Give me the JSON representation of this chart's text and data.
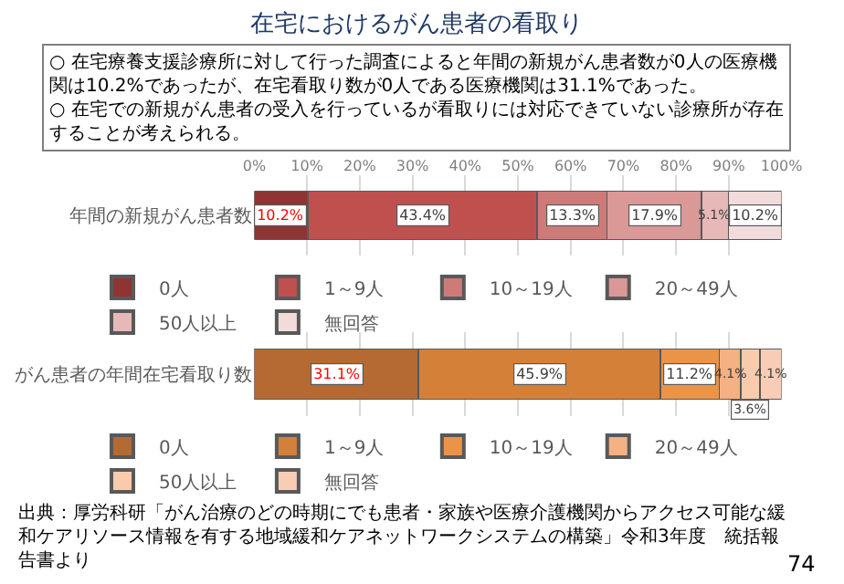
{
  "chart_data": [
    {
      "type": "bar",
      "orientation": "horizontal",
      "stacked": true,
      "title": "在宅におけるがん患者の看取り",
      "subtitle": "○ 在宅療養支援診療所に対して行った調査によると年間の新規がん患者数が0人の医療機関は10.2%であったが、在宅看取り数が0人である医療機関は31.1%であった。\n○ 在宅での新規がん患者の受入を行っているが看取りには対応できていない診療所が存在することが考えられる。",
      "categories": [
        "年間の新規がん患者数"
      ],
      "series": [
        {
          "name": "0人",
          "color": "#8e3432",
          "values": [
            10.2
          ],
          "value_labels": [
            "10.2%"
          ]
        },
        {
          "name": "1～9人",
          "color": "#c0504d",
          "values": [
            43.4
          ],
          "value_labels": [
            "43.4%"
          ]
        },
        {
          "name": "10～19人",
          "color": "#cd7b79",
          "values": [
            13.3
          ],
          "value_labels": [
            "13.3%"
          ]
        },
        {
          "name": "20～49人",
          "color": "#da9896",
          "values": [
            17.9
          ],
          "value_labels": [
            "17.9%"
          ]
        },
        {
          "name": "50人以上",
          "color": "#e6b9b8",
          "values": [
            5.1
          ],
          "value_labels": [
            "5.1%"
          ]
        },
        {
          "name": "無回答",
          "color": "#f2dcdb",
          "values": [
            10.2
          ],
          "value_labels": [
            "10.2%"
          ]
        }
      ],
      "xlim": [
        0,
        100
      ],
      "xticks": [
        {
          "value": 0,
          "label": "0%"
        },
        {
          "value": 10,
          "label": "10%"
        },
        {
          "value": 20,
          "label": "20%"
        },
        {
          "value": 30,
          "label": "30%"
        },
        {
          "value": 40,
          "label": "40%"
        },
        {
          "value": 50,
          "label": "50%"
        },
        {
          "value": 60,
          "label": "60%"
        },
        {
          "value": 70,
          "label": "70%"
        },
        {
          "value": 80,
          "label": "80%"
        },
        {
          "value": 90,
          "label": "90%"
        },
        {
          "value": 100,
          "label": "100%"
        }
      ],
      "grid": "x",
      "legend": "bottom"
    },
    {
      "type": "bar",
      "orientation": "horizontal",
      "stacked": true,
      "categories": [
        "がん患者の年間在宅看取り数"
      ],
      "series": [
        {
          "name": "0人",
          "color": "#b46a32",
          "values": [
            31.1
          ],
          "value_labels": [
            "31.1%"
          ]
        },
        {
          "name": "1～9人",
          "color": "#d48039",
          "values": [
            45.9
          ],
          "value_labels": [
            "45.9%"
          ]
        },
        {
          "name": "10～19人",
          "color": "#e99449",
          "values": [
            11.2
          ],
          "value_labels": [
            "11.2%"
          ]
        },
        {
          "name": "20～49人",
          "color": "#f4b183",
          "values": [
            4.1
          ],
          "value_labels": [
            "4.1%"
          ]
        },
        {
          "name": "50人以上",
          "color": "#f8cbad",
          "values": [
            3.6
          ],
          "value_labels": [
            "3.6%"
          ]
        },
        {
          "name": "無回答",
          "color": "#f7cdb6",
          "values": [
            4.1
          ],
          "value_labels": [
            "4.1%"
          ]
        }
      ],
      "xlim": [
        0,
        100
      ],
      "xticks": [
        {
          "value": 0,
          "label": null
        },
        {
          "value": 10,
          "label": null
        },
        {
          "value": 20,
          "label": null
        },
        {
          "value": 30,
          "label": null
        },
        {
          "value": 40,
          "label": null
        },
        {
          "value": 50,
          "label": null
        },
        {
          "value": 60,
          "label": null
        },
        {
          "value": 70,
          "label": null
        },
        {
          "value": 80,
          "label": null
        },
        {
          "value": 90,
          "label": null
        },
        {
          "value": 100,
          "label": null
        }
      ],
      "tick_labels": "y",
      "grid": "x",
      "legend": "bottom",
      "annotations": [
        "出典：厚労科研「がん治療のどの時期にでも患者・家族や医療介護機関からアクセス可能な緩和ケアリソース情報を有する地域緩和ケアネットワークシステムの構築」令和3年度　統括報告書より",
        "74"
      ]
    }
  ]
}
